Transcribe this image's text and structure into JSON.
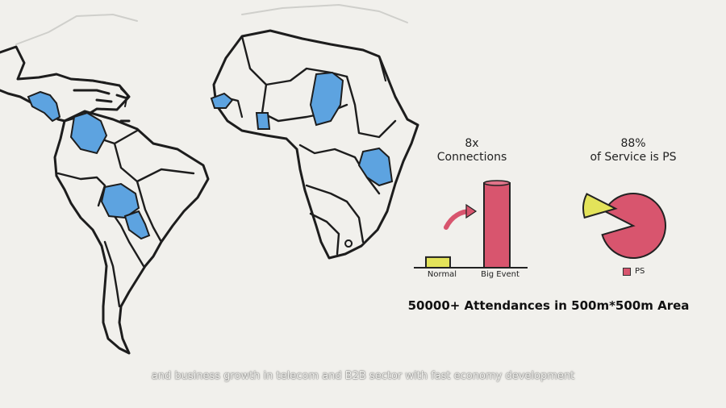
{
  "colors": {
    "background": "#f1f0ec",
    "country_highlight": "#5da3e0",
    "bar_normal": "#e3e35a",
    "bar_big_event": "#d8556e",
    "pie_ps": "#d8556e",
    "pie_other": "#e3e35a"
  },
  "bar_chart": {
    "title_line1": "8x",
    "title_line2": "Connections",
    "categories": [
      "Normal",
      "Big Event"
    ],
    "values": [
      1,
      8
    ]
  },
  "pie_chart": {
    "title_line1": "88%",
    "title_line2": "of Service is PS",
    "ps_share": 88,
    "legend_label": "PS"
  },
  "headline": "50000+ Attendances in 500m*500m Area",
  "subtitle": "and business growth in telecom and B2B sector with fast economy development"
}
